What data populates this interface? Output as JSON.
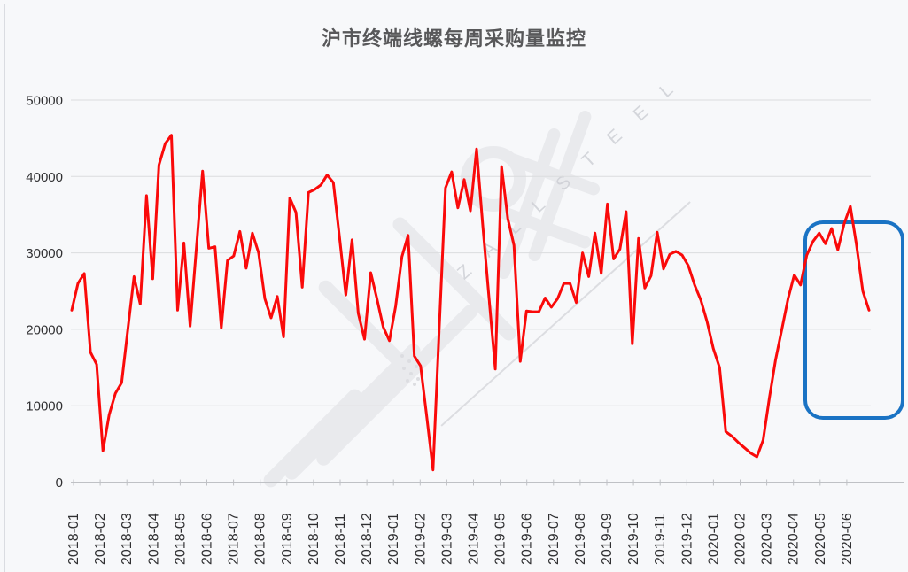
{
  "title": "沪市终端线螺每周采购量监控",
  "watermark": {
    "letters": "Z A L L  S T E E L"
  },
  "annotation": {
    "shape": "rounded-rect",
    "color": "#1a73c4",
    "highlight_range": "2020-05 ~ 2020-06"
  },
  "chart_data": {
    "type": "line",
    "title": "沪市终端线螺每周采购量监控",
    "xlabel": "",
    "ylabel": "",
    "frequency": "weekly",
    "line_color": "#fa0a0a",
    "grid": "horizontal",
    "legend": "none",
    "ylim": [
      0,
      50000
    ],
    "y_ticks": [
      0,
      10000,
      20000,
      30000,
      40000,
      50000
    ],
    "x_labels": [
      "2018-01",
      "2018-02",
      "2018-03",
      "2018-04",
      "2018-05",
      "2018-06",
      "2018-07",
      "2018-08",
      "2018-09",
      "2018-10",
      "2018-11",
      "2018-12",
      "2019-01",
      "2019-02",
      "2019-03",
      "2019-04",
      "2019-05",
      "2019-06",
      "2019-07",
      "2019-08",
      "2019-09",
      "2019-10",
      "2019-11",
      "2019-12",
      "2020-01",
      "2020-02",
      "2020-03",
      "2020-04",
      "2020-05",
      "2020-06"
    ],
    "values": [
      22500,
      26000,
      27300,
      17000,
      15400,
      4100,
      8800,
      11600,
      13000,
      20000,
      26900,
      23300,
      37500,
      26600,
      41500,
      44300,
      45400,
      22500,
      31300,
      20400,
      30500,
      40700,
      30600,
      30800,
      20200,
      29000,
      29600,
      32800,
      28000,
      32600,
      30000,
      24000,
      21500,
      24300,
      19000,
      37200,
      35300,
      25500,
      37900,
      38300,
      38900,
      40200,
      39200,
      32000,
      24500,
      31700,
      22100,
      18700,
      27400,
      24000,
      20300,
      18500,
      23000,
      29500,
      32300,
      16500,
      15200,
      8500,
      1600,
      20000,
      38500,
      40600,
      35900,
      39600,
      35500,
      43600,
      33400,
      24000,
      14800,
      41300,
      34500,
      31000,
      15800,
      22400,
      22300,
      22300,
      24100,
      22900,
      24000,
      26000,
      26000,
      23500,
      30000,
      26900,
      32600,
      27300,
      36400,
      29200,
      30500,
      35400,
      18100,
      31900,
      25400,
      27000,
      32700,
      27900,
      29800,
      30200,
      29700,
      28300,
      25800,
      23800,
      21000,
      17500,
      15000,
      6600,
      6000,
      5200,
      4500,
      3800,
      3300,
      5500,
      11000,
      16000,
      20000,
      24000,
      27100,
      25800,
      29700,
      31500,
      32600,
      31200,
      33200,
      30400,
      33800,
      36100,
      31000,
      25000,
      22500
    ]
  }
}
